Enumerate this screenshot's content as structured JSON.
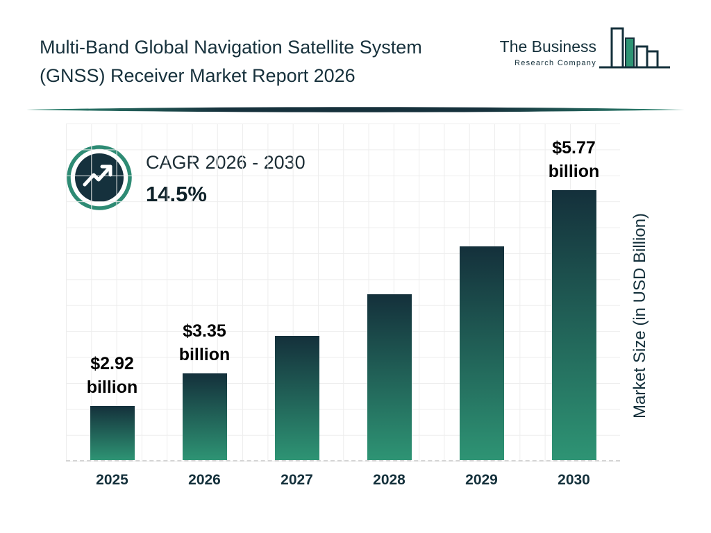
{
  "header": {
    "title_line1": "Multi-Band Global Navigation Satellite System",
    "title_line2": "(GNSS) Receiver Market Report 2026",
    "logo": {
      "company": "The Business Research Company",
      "line1": "The Business",
      "line2": "Research Company"
    }
  },
  "cagr": {
    "label": "CAGR 2026 - 2030",
    "value": "14.5%"
  },
  "chart_data": {
    "type": "bar",
    "title": "Multi-Band Global Navigation Satellite System (GNSS) Receiver Market Report 2026",
    "categories": [
      "2025",
      "2026",
      "2027",
      "2028",
      "2029",
      "2030"
    ],
    "values": [
      2.92,
      3.35,
      3.84,
      4.39,
      5.03,
      5.77
    ],
    "bar_labels": [
      "$2.92 billion",
      "$3.35 billion",
      "",
      "",
      "",
      "$5.77 billion"
    ],
    "xlabel": "",
    "ylabel": "Market Size (in USD Billion)",
    "unit": "USD Billion",
    "ylim": [
      2.2,
      6.65
    ],
    "grid": true,
    "legend": false,
    "annotations": [
      "CAGR 2026 - 2030: 14.5%"
    ],
    "colors": {
      "bar_top": "#14303B",
      "bar_bottom": "#2E9474",
      "accent_teal": "#2E8B74",
      "dark_navy": "#14303B"
    }
  }
}
